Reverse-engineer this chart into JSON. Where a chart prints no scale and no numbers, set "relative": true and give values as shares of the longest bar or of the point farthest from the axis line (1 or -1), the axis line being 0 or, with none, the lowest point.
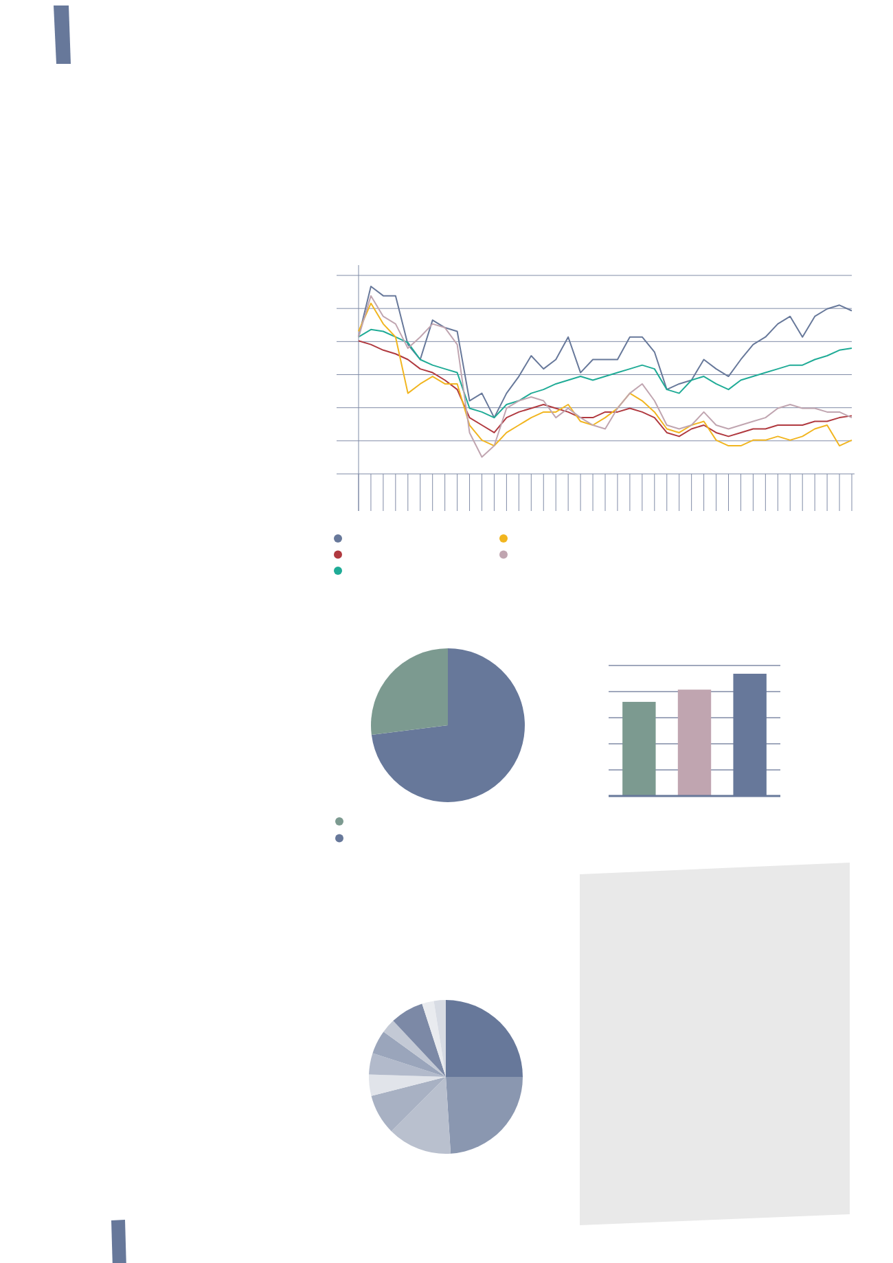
{
  "chart_data": [
    {
      "type": "line",
      "relative": true,
      "grid": "y",
      "categories": [
        null,
        null,
        null,
        null,
        null,
        null,
        null,
        null,
        null,
        null,
        null,
        null,
        null,
        null,
        null,
        null,
        null,
        null,
        null,
        null,
        null,
        null,
        null,
        null,
        null,
        null,
        null,
        null,
        null,
        null,
        null,
        null,
        null,
        null,
        null,
        null,
        null,
        null,
        null,
        null,
        null
      ],
      "series": [
        {
          "color": "#67789a",
          "values": [
            0.73,
            1.0,
            0.95,
            0.95,
            0.69,
            0.61,
            0.82,
            0.78,
            0.76,
            0.39,
            0.43,
            0.3,
            0.43,
            0.52,
            0.63,
            0.56,
            0.61,
            0.73,
            0.54,
            0.61,
            0.61,
            0.61,
            0.73,
            0.73,
            0.65,
            0.45,
            0.48,
            0.5,
            0.61,
            0.56,
            0.52,
            0.61,
            0.69,
            0.73,
            0.8,
            0.84,
            0.73,
            0.84,
            0.88,
            0.9,
            0.87
          ]
        },
        {
          "color": "#b0393f",
          "values": [
            0.71,
            0.69,
            0.66,
            0.64,
            0.61,
            0.56,
            0.54,
            0.5,
            0.45,
            0.3,
            0.26,
            0.22,
            0.3,
            0.33,
            0.35,
            0.37,
            0.35,
            0.33,
            0.3,
            0.3,
            0.33,
            0.33,
            0.35,
            0.33,
            0.3,
            0.22,
            0.2,
            0.24,
            0.26,
            0.22,
            0.2,
            0.22,
            0.24,
            0.24,
            0.26,
            0.26,
            0.26,
            0.28,
            0.28,
            0.3,
            0.31
          ]
        },
        {
          "color": "#1fab96",
          "values": [
            0.73,
            0.77,
            0.76,
            0.73,
            0.7,
            0.61,
            0.58,
            0.56,
            0.54,
            0.35,
            0.33,
            0.3,
            0.37,
            0.39,
            0.43,
            0.45,
            0.48,
            0.5,
            0.52,
            0.5,
            0.52,
            0.54,
            0.56,
            0.58,
            0.56,
            0.45,
            0.43,
            0.5,
            0.52,
            0.48,
            0.45,
            0.5,
            0.52,
            0.54,
            0.56,
            0.58,
            0.58,
            0.61,
            0.63,
            0.66,
            0.67
          ]
        },
        {
          "color": "#f1b51f",
          "values": [
            0.76,
            0.91,
            0.8,
            0.73,
            0.43,
            0.48,
            0.52,
            0.48,
            0.48,
            0.26,
            0.18,
            0.15,
            0.22,
            0.26,
            0.3,
            0.33,
            0.33,
            0.37,
            0.28,
            0.26,
            0.3,
            0.35,
            0.43,
            0.39,
            0.33,
            0.24,
            0.22,
            0.26,
            0.28,
            0.18,
            0.15,
            0.15,
            0.18,
            0.18,
            0.2,
            0.18,
            0.2,
            0.24,
            0.26,
            0.15,
            0.18
          ]
        },
        {
          "color": "#c0a5b0",
          "values": [
            0.73,
            0.95,
            0.84,
            0.8,
            0.67,
            0.73,
            0.8,
            0.78,
            0.69,
            0.22,
            0.09,
            0.15,
            0.35,
            0.39,
            0.41,
            0.39,
            0.3,
            0.35,
            0.3,
            0.26,
            0.24,
            0.35,
            0.43,
            0.48,
            0.39,
            0.26,
            0.24,
            0.26,
            0.33,
            0.26,
            0.24,
            0.26,
            0.28,
            0.3,
            0.35,
            0.37,
            0.35,
            0.35,
            0.33,
            0.33,
            0.3
          ]
        }
      ]
    },
    {
      "type": "pie",
      "categories": [
        null,
        null
      ],
      "values": [
        73,
        27
      ],
      "colors": [
        "#67789a",
        "#7c9a90"
      ]
    },
    {
      "type": "bar",
      "relative": true,
      "grid": "y",
      "categories": [
        null,
        null,
        null
      ],
      "values": [
        0.77,
        0.87,
        1
      ],
      "colors": [
        "#7c9a90",
        "#c0a5b0",
        "#67789a"
      ]
    },
    {
      "type": "pie",
      "categories": [
        null,
        null,
        null,
        null,
        null,
        null,
        null,
        null,
        null,
        null,
        null
      ],
      "values": [
        25,
        24,
        13.5,
        8.5,
        4.5,
        4.5,
        5,
        3,
        7,
        2.5,
        2.5
      ],
      "colors": [
        "#67789a",
        "#8a97b0",
        "#b9c0ce",
        "#a8b1c3",
        "#e1e4ea",
        "#b2bacb",
        "#9aa5bb",
        "#c3c9d5",
        "#7c89a6",
        "#e9ebef",
        "#d8dce4"
      ]
    }
  ]
}
